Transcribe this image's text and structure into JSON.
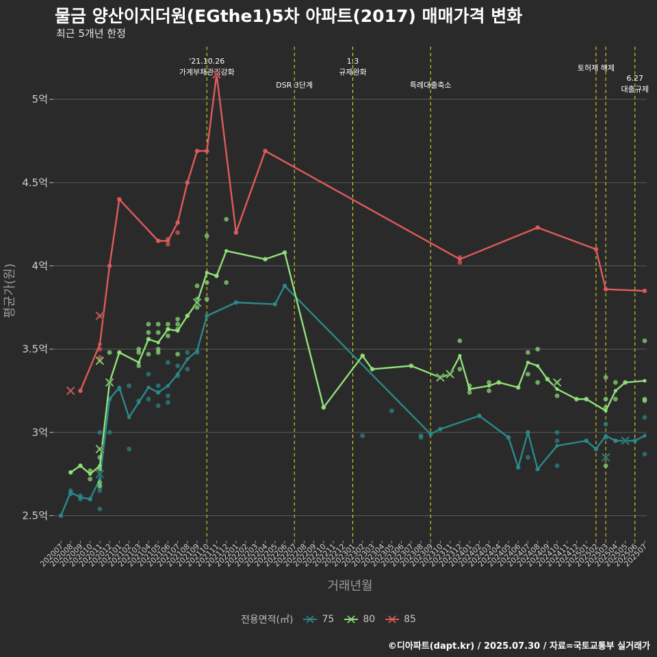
{
  "title": "물금 양산이지더원(EGthe1)5차 아파트(2017) 매매가격 변화",
  "subtitle": "최근 5개년 한정",
  "caption": "©디아파트(dapt.kr) / 2025.07.30 / 자료=국토교통부 실거래가",
  "legend": {
    "title": "전용면적(㎡)",
    "items": [
      {
        "label": "75",
        "color": "#2a8a8a"
      },
      {
        "label": "80",
        "color": "#90e27a"
      },
      {
        "label": "85",
        "color": "#e05b5b"
      }
    ]
  },
  "chart_data": {
    "type": "line",
    "xlabel": "거래년월",
    "ylabel": "평균가(원)",
    "ylim": [
      2.35,
      5.35
    ],
    "yticks": [
      {
        "value": 2.5,
        "label": "2.5억"
      },
      {
        "value": 3.0,
        "label": "3억"
      },
      {
        "value": 3.5,
        "label": "3.5억"
      },
      {
        "value": 4.0,
        "label": "4억"
      },
      {
        "value": 4.5,
        "label": "4.5억"
      },
      {
        "value": 5.0,
        "label": "5억"
      }
    ],
    "categories": [
      "202007",
      "202008",
      "202009",
      "202010",
      "202011",
      "202012",
      "202101",
      "202102",
      "202103",
      "202104",
      "202105",
      "202106",
      "202107",
      "202108",
      "202109",
      "202110",
      "202111",
      "202112",
      "202201",
      "202202",
      "202203",
      "202204",
      "202205",
      "202206",
      "202207",
      "202208",
      "202209",
      "202210",
      "202211",
      "202212",
      "202301",
      "202302",
      "202303",
      "202304",
      "202305",
      "202306",
      "202307",
      "202308",
      "202309",
      "202310",
      "202311",
      "202312",
      "202401",
      "202402",
      "202403",
      "202404",
      "202405",
      "202406",
      "202407",
      "202408",
      "202409",
      "202410",
      "202411",
      "202412",
      "202501",
      "202502",
      "202503",
      "202504",
      "202505",
      "202506",
      "202507"
    ],
    "grid": true,
    "annotations": [
      {
        "x": "202110",
        "label": "'21.10.26\n가계부채관리강화"
      },
      {
        "x": "202207",
        "label": "DSR 3단계"
      },
      {
        "x": "202301",
        "label": "1.3\n규제완화"
      },
      {
        "x": "202309",
        "label": "특례대출축소"
      },
      {
        "x": "202502",
        "label": "토허제 해제"
      },
      {
        "x": "202503",
        "label": ""
      },
      {
        "x": "202506",
        "label": "6.27\n대출규제"
      }
    ],
    "series": [
      {
        "name": "75",
        "color": "#2a8a8a",
        "line": [
          [
            0,
            2.5
          ],
          [
            1,
            2.64
          ],
          [
            2,
            2.61
          ],
          [
            3,
            2.6
          ],
          [
            4,
            2.72
          ],
          [
            5,
            3.2
          ],
          [
            6,
            3.27
          ],
          [
            7,
            3.09
          ],
          [
            8,
            3.18
          ],
          [
            9,
            3.27
          ],
          [
            10,
            3.24
          ],
          [
            11,
            3.28
          ],
          [
            12,
            3.35
          ],
          [
            13,
            3.44
          ],
          [
            14,
            3.49
          ],
          [
            15,
            3.7
          ],
          [
            18,
            3.78
          ],
          [
            22,
            3.77
          ],
          [
            23,
            3.88
          ],
          [
            38,
            2.99
          ],
          [
            39,
            3.02
          ],
          [
            43,
            3.1
          ],
          [
            46,
            2.97
          ],
          [
            47,
            2.79
          ],
          [
            48,
            3.0
          ],
          [
            49,
            2.78
          ],
          [
            51,
            2.92
          ],
          [
            54,
            2.95
          ],
          [
            55,
            2.9
          ],
          [
            56,
            2.98
          ],
          [
            57,
            2.95
          ],
          [
            58,
            2.95
          ],
          [
            59,
            2.95
          ],
          [
            60,
            2.98
          ]
        ],
        "points": [
          [
            0,
            2.5
          ],
          [
            1,
            2.65
          ],
          [
            1,
            2.63
          ],
          [
            2,
            2.6
          ],
          [
            2,
            2.62
          ],
          [
            3,
            2.6
          ],
          [
            4,
            2.54
          ],
          [
            4,
            2.65
          ],
          [
            4,
            2.67
          ],
          [
            4,
            2.75
          ],
          [
            4,
            3.0
          ],
          [
            5,
            3.0
          ],
          [
            5,
            3.2
          ],
          [
            6,
            3.26
          ],
          [
            7,
            2.9
          ],
          [
            7,
            3.28
          ],
          [
            8,
            3.19
          ],
          [
            9,
            3.2
          ],
          [
            9,
            3.35
          ],
          [
            10,
            3.16
          ],
          [
            10,
            3.24
          ],
          [
            10,
            3.28
          ],
          [
            11,
            3.18
          ],
          [
            11,
            3.22
          ],
          [
            11,
            3.42
          ],
          [
            12,
            3.34
          ],
          [
            12,
            3.4
          ],
          [
            13,
            3.38
          ],
          [
            13,
            3.48
          ],
          [
            14,
            3.48
          ],
          [
            15,
            3.7
          ],
          [
            18,
            3.78
          ],
          [
            22,
            3.77
          ],
          [
            23,
            3.88
          ],
          [
            31,
            2.98
          ],
          [
            34,
            3.13
          ],
          [
            37,
            2.97
          ],
          [
            37,
            2.98
          ],
          [
            38,
            2.99
          ],
          [
            39,
            3.02
          ],
          [
            43,
            3.1
          ],
          [
            46,
            2.97
          ],
          [
            47,
            2.79
          ],
          [
            48,
            2.85
          ],
          [
            48,
            3.0
          ],
          [
            49,
            2.78
          ],
          [
            51,
            2.8
          ],
          [
            51,
            2.95
          ],
          [
            51,
            3.0
          ],
          [
            54,
            2.95
          ],
          [
            55,
            2.9
          ],
          [
            56,
            2.97
          ],
          [
            56,
            3.05
          ],
          [
            57,
            2.95
          ],
          [
            58,
            2.95
          ],
          [
            59,
            2.95
          ],
          [
            60,
            2.87
          ],
          [
            60,
            3.09
          ]
        ],
        "crosses": [
          [
            4,
            2.75
          ],
          [
            56,
            2.85
          ],
          [
            58,
            2.95
          ]
        ]
      },
      {
        "name": "80",
        "color": "#90e27a",
        "line": [
          [
            1,
            2.76
          ],
          [
            2,
            2.8
          ],
          [
            3,
            2.75
          ],
          [
            4,
            2.8
          ],
          [
            5,
            3.3
          ],
          [
            6,
            3.48
          ],
          [
            8,
            3.42
          ],
          [
            9,
            3.56
          ],
          [
            10,
            3.54
          ],
          [
            11,
            3.62
          ],
          [
            12,
            3.61
          ],
          [
            13,
            3.7
          ],
          [
            14,
            3.78
          ],
          [
            15,
            3.96
          ],
          [
            16,
            3.94
          ],
          [
            17,
            4.09
          ],
          [
            21,
            4.04
          ],
          [
            23,
            4.08
          ],
          [
            27,
            3.15
          ],
          [
            31,
            3.46
          ],
          [
            32,
            3.38
          ],
          [
            36,
            3.4
          ],
          [
            39,
            3.33
          ],
          [
            40,
            3.35
          ],
          [
            41,
            3.46
          ],
          [
            42,
            3.26
          ],
          [
            44,
            3.28
          ],
          [
            45,
            3.3
          ],
          [
            47,
            3.27
          ],
          [
            48,
            3.42
          ],
          [
            49,
            3.4
          ],
          [
            50,
            3.32
          ],
          [
            51,
            3.26
          ],
          [
            53,
            3.2
          ],
          [
            54,
            3.2
          ],
          [
            56,
            3.13
          ],
          [
            57,
            3.25
          ],
          [
            58,
            3.3
          ],
          [
            60,
            3.31
          ]
        ],
        "points": [
          [
            1,
            2.76
          ],
          [
            2,
            2.8
          ],
          [
            3,
            2.72
          ],
          [
            3,
            2.77
          ],
          [
            4,
            2.68
          ],
          [
            4,
            2.7
          ],
          [
            4,
            2.78
          ],
          [
            4,
            2.85
          ],
          [
            4,
            2.9
          ],
          [
            4,
            3.43
          ],
          [
            5,
            3.3
          ],
          [
            5,
            3.48
          ],
          [
            6,
            3.48
          ],
          [
            8,
            3.4
          ],
          [
            8,
            3.48
          ],
          [
            8,
            3.5
          ],
          [
            9,
            3.47
          ],
          [
            9,
            3.56
          ],
          [
            9,
            3.6
          ],
          [
            9,
            3.65
          ],
          [
            10,
            3.48
          ],
          [
            10,
            3.5
          ],
          [
            10,
            3.6
          ],
          [
            10,
            3.65
          ],
          [
            11,
            3.58
          ],
          [
            11,
            3.62
          ],
          [
            11,
            3.65
          ],
          [
            12,
            3.47
          ],
          [
            12,
            3.62
          ],
          [
            12,
            3.65
          ],
          [
            12,
            3.68
          ],
          [
            13,
            3.7
          ],
          [
            14,
            3.75
          ],
          [
            14,
            3.78
          ],
          [
            14,
            3.8
          ],
          [
            14,
            3.88
          ],
          [
            15,
            3.8
          ],
          [
            15,
            3.9
          ],
          [
            15,
            4.18
          ],
          [
            16,
            3.94
          ],
          [
            17,
            3.9
          ],
          [
            17,
            4.28
          ],
          [
            21,
            4.04
          ],
          [
            23,
            4.08
          ],
          [
            27,
            3.15
          ],
          [
            31,
            3.46
          ],
          [
            32,
            3.38
          ],
          [
            36,
            3.4
          ],
          [
            39,
            3.33
          ],
          [
            40,
            3.35
          ],
          [
            41,
            3.38
          ],
          [
            41,
            3.55
          ],
          [
            42,
            3.24
          ],
          [
            42,
            3.28
          ],
          [
            44,
            3.25
          ],
          [
            44,
            3.3
          ],
          [
            45,
            3.3
          ],
          [
            47,
            3.27
          ],
          [
            48,
            3.35
          ],
          [
            48,
            3.48
          ],
          [
            49,
            3.3
          ],
          [
            49,
            3.5
          ],
          [
            50,
            3.32
          ],
          [
            51,
            3.22
          ],
          [
            51,
            3.3
          ],
          [
            53,
            3.2
          ],
          [
            54,
            3.2
          ],
          [
            56,
            3.15
          ],
          [
            56,
            3.2
          ],
          [
            56,
            3.33
          ],
          [
            56,
            2.8
          ],
          [
            57,
            3.2
          ],
          [
            57,
            3.3
          ],
          [
            58,
            3.3
          ],
          [
            60,
            3.19
          ],
          [
            60,
            3.2
          ],
          [
            60,
            3.55
          ]
        ],
        "crosses": [
          [
            4,
            2.9
          ],
          [
            4,
            3.43
          ],
          [
            5,
            3.3
          ],
          [
            14,
            3.78
          ],
          [
            39,
            3.33
          ],
          [
            40,
            3.35
          ],
          [
            51,
            3.3
          ]
        ]
      },
      {
        "name": "85",
        "color": "#e05b5b",
        "line": [
          [
            2,
            3.25
          ],
          [
            4,
            3.53
          ],
          [
            5,
            4.0
          ],
          [
            6,
            4.4
          ],
          [
            10,
            4.15
          ],
          [
            11,
            4.15
          ],
          [
            12,
            4.26
          ],
          [
            13,
            4.5
          ],
          [
            14,
            4.69
          ],
          [
            15,
            4.69
          ],
          [
            16,
            5.15
          ],
          [
            18,
            4.2
          ],
          [
            21,
            4.69
          ],
          [
            41,
            4.04
          ],
          [
            49,
            4.23
          ],
          [
            55,
            4.1
          ],
          [
            56,
            3.86
          ],
          [
            60,
            3.85
          ]
        ],
        "points": [
          [
            2,
            3.25
          ],
          [
            4,
            3.45
          ],
          [
            4,
            3.5
          ],
          [
            4,
            3.7
          ],
          [
            5,
            4.0
          ],
          [
            6,
            4.4
          ],
          [
            10,
            4.15
          ],
          [
            11,
            4.13
          ],
          [
            11,
            4.16
          ],
          [
            12,
            4.2
          ],
          [
            12,
            4.26
          ],
          [
            13,
            4.5
          ],
          [
            14,
            4.69
          ],
          [
            15,
            4.69
          ],
          [
            16,
            5.15
          ],
          [
            18,
            4.2
          ],
          [
            21,
            4.69
          ],
          [
            41,
            4.02
          ],
          [
            41,
            4.05
          ],
          [
            49,
            4.23
          ],
          [
            55,
            4.1
          ],
          [
            56,
            3.86
          ],
          [
            60,
            3.85
          ]
        ],
        "crosses": [
          [
            1,
            3.25
          ],
          [
            4,
            3.7
          ],
          [
            16,
            5.15
          ]
        ]
      }
    ]
  }
}
